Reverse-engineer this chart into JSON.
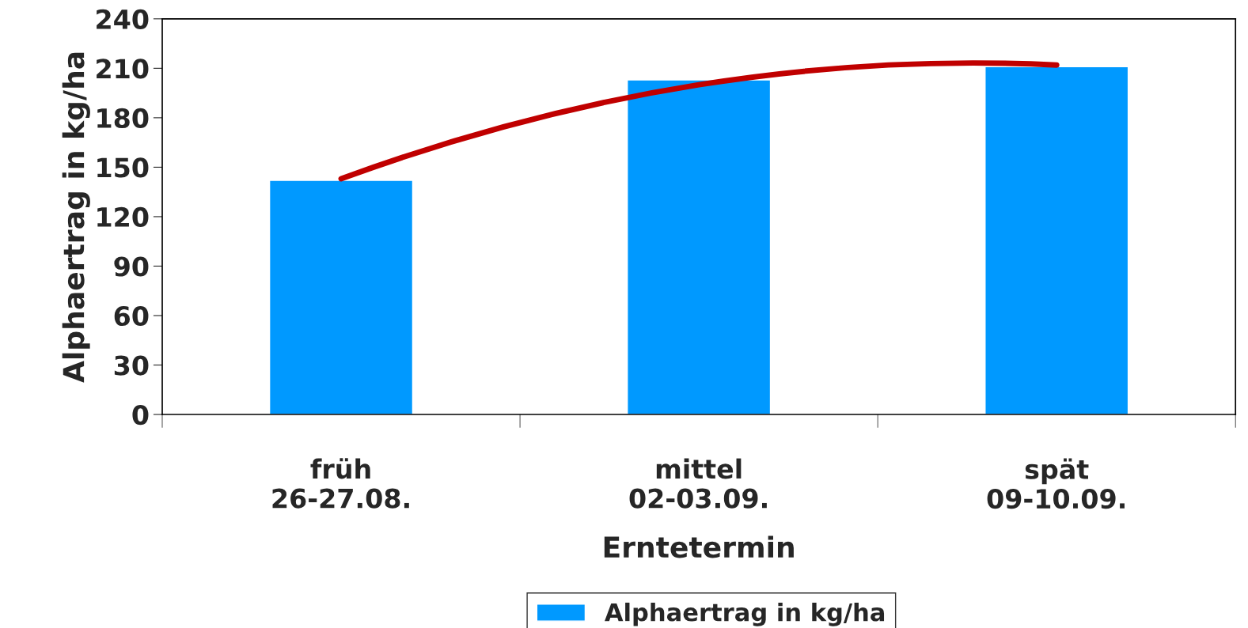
{
  "chart_data": {
    "type": "bar",
    "xlabel": "Erntetermin",
    "ylabel": "Alphaertrag in kg/ha",
    "categories": [
      "früh\n26-27.08.",
      "mittel\n02-03.09.",
      "spät\n09-10.09."
    ],
    "series": [
      {
        "name": "Alphaertrag in kg/ha",
        "color": "#0099ff",
        "values": [
          142,
          203,
          211
        ]
      },
      {
        "type": "line",
        "color": "#c00000",
        "values": [
          143,
          200,
          212
        ]
      }
    ],
    "ylim": [
      0,
      240
    ],
    "yticks": [
      0,
      30,
      60,
      90,
      120,
      150,
      180,
      210,
      240
    ],
    "grid": false,
    "legend": "bottom"
  }
}
